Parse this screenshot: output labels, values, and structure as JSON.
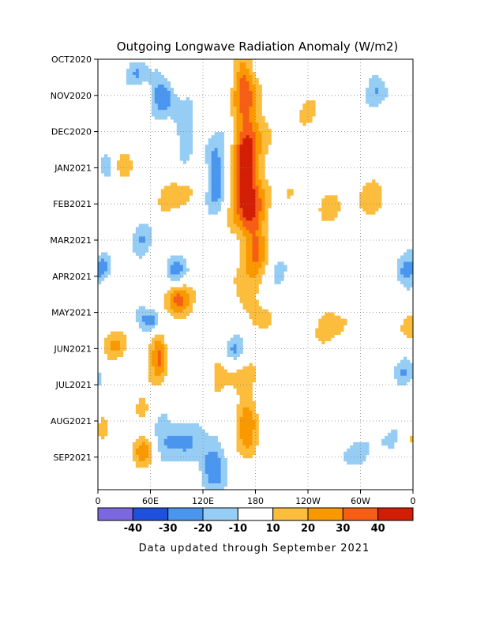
{
  "chart_data": {
    "type": "heatmap",
    "title": "Outgoing Longwave Radiation Anomaly (W/m2)",
    "x_ticks": [
      "0",
      "60E",
      "120E",
      "180",
      "120W",
      "60W",
      "0"
    ],
    "y_ticks": [
      "OCT2020",
      "NOV2020",
      "DEC2020",
      "JAN2021",
      "FEB2021",
      "MAR2021",
      "APR2021",
      "MAY2021",
      "JUN2021",
      "JUL2021",
      "AUG2021",
      "SEP2021"
    ],
    "grid": true,
    "colorbar": {
      "labels": [
        "-40",
        "-30",
        "-20",
        "-10",
        "10",
        "20",
        "30",
        "40"
      ],
      "colors": [
        "#7b68e0",
        "#1e50dc",
        "#4a96ee",
        "#96cdf5",
        "#ffffff",
        "#fcbd3c",
        "#fa9800",
        "#f55e14",
        "#d21e04"
      ]
    },
    "blobs": [
      {
        "lon": 165,
        "mon": 0.5,
        "sx": 9,
        "sy": 0.6,
        "v": 22
      },
      {
        "lon": 175,
        "mon": 1.6,
        "sx": 12,
        "sy": 0.8,
        "v": 24
      },
      {
        "lon": 170,
        "mon": 3.0,
        "sx": 10,
        "sy": 0.8,
        "v": 42
      },
      {
        "lon": 172,
        "mon": 4.1,
        "sx": 13,
        "sy": 0.6,
        "v": 28
      },
      {
        "lon": 178,
        "mon": 5.3,
        "sx": 11,
        "sy": 0.7,
        "v": 26
      },
      {
        "lon": 165,
        "mon": 6.5,
        "sx": 9,
        "sy": 0.4,
        "v": 18
      },
      {
        "lon": 75,
        "mon": 1.0,
        "sx": 10,
        "sy": 0.35,
        "v": -32
      },
      {
        "lon": 45,
        "mon": 0.35,
        "sx": 8,
        "sy": 0.3,
        "v": -22
      },
      {
        "lon": 100,
        "mon": 2.0,
        "sx": 14,
        "sy": 0.5,
        "v": -15
      },
      {
        "lon": 135,
        "mon": 3.2,
        "sx": 9,
        "sy": 0.7,
        "v": -25
      },
      {
        "lon": 25,
        "mon": 2.8,
        "sx": 8,
        "sy": 0.4,
        "v": 15
      },
      {
        "lon": 90,
        "mon": 3.8,
        "sx": 12,
        "sy": 0.35,
        "v": 18
      },
      {
        "lon": 90,
        "mon": 5.8,
        "sx": 10,
        "sy": 0.3,
        "v": -25
      },
      {
        "lon": 50,
        "mon": 4.9,
        "sx": 10,
        "sy": 0.4,
        "v": -15
      },
      {
        "lon": 90,
        "mon": 6.6,
        "sx": 11,
        "sy": 0.35,
        "v": 33
      },
      {
        "lon": 60,
        "mon": 7.25,
        "sx": 9,
        "sy": 0.25,
        "v": -35
      },
      {
        "lon": 70,
        "mon": 8.2,
        "sx": 7,
        "sy": 0.5,
        "v": 36
      },
      {
        "lon": 20,
        "mon": 7.9,
        "sx": 12,
        "sy": 0.3,
        "v": 16
      },
      {
        "lon": 155,
        "mon": 8.0,
        "sx": 10,
        "sy": 0.3,
        "v": -22
      },
      {
        "lon": 150,
        "mon": 8.6,
        "sx": 20,
        "sy": 0.4,
        "v": 16
      },
      {
        "lon": 270,
        "mon": 7.4,
        "sx": 14,
        "sy": 0.4,
        "v": 15
      },
      {
        "lon": 195,
        "mon": 7.3,
        "sx": 9,
        "sy": 0.3,
        "v": 15
      },
      {
        "lon": 320,
        "mon": 4.0,
        "sx": 18,
        "sy": 0.4,
        "v": 16
      },
      {
        "lon": 260,
        "mon": 4.0,
        "sx": 10,
        "sy": 0.35,
        "v": 15
      },
      {
        "lon": 218,
        "mon": 3.8,
        "sx": 7,
        "sy": 0.3,
        "v": 12
      },
      {
        "lon": 350,
        "mon": 5.9,
        "sx": 8,
        "sy": 0.35,
        "v": -25
      },
      {
        "lon": 355,
        "mon": 7.3,
        "sx": 8,
        "sy": 0.3,
        "v": 18
      },
      {
        "lon": 350,
        "mon": 8.7,
        "sx": 10,
        "sy": 0.3,
        "v": -15
      },
      {
        "lon": 318,
        "mon": 0.8,
        "sx": 8,
        "sy": 0.4,
        "v": -22
      },
      {
        "lon": 6,
        "mon": 5.8,
        "sx": 6,
        "sy": 0.35,
        "v": -18
      },
      {
        "lon": 8,
        "mon": 6.3,
        "sx": 5,
        "sy": 0.25,
        "v": 14
      },
      {
        "lon": 10,
        "mon": 3.0,
        "sx": 7,
        "sy": 0.3,
        "v": -18
      },
      {
        "lon": 85,
        "mon": 10.5,
        "sx": 20,
        "sy": 0.5,
        "v": -24
      },
      {
        "lon": 130,
        "mon": 11.2,
        "sx": 10,
        "sy": 0.5,
        "v": -32
      },
      {
        "lon": 55,
        "mon": 10.9,
        "sx": 10,
        "sy": 0.35,
        "v": 28
      },
      {
        "lon": 50,
        "mon": 9.7,
        "sx": 12,
        "sy": 0.25,
        "v": 15
      },
      {
        "lon": 170,
        "mon": 9.9,
        "sx": 10,
        "sy": 0.45,
        "v": 25
      },
      {
        "lon": 175,
        "mon": 10.8,
        "sx": 10,
        "sy": 0.35,
        "v": 14
      },
      {
        "lon": 290,
        "mon": 10.9,
        "sx": 12,
        "sy": 0.3,
        "v": -15
      },
      {
        "lon": 330,
        "mon": 10.6,
        "sx": 10,
        "sy": 0.3,
        "v": -12
      },
      {
        "lon": 5,
        "mon": 10.3,
        "sx": 6,
        "sy": 0.3,
        "v": 14
      },
      {
        "lon": 25,
        "mon": 9.4,
        "sx": 10,
        "sy": 0.3,
        "v": -12
      },
      {
        "lon": 240,
        "mon": 1.4,
        "sx": 14,
        "sy": 0.4,
        "v": 8
      },
      {
        "lon": 300,
        "mon": 2.3,
        "sx": 10,
        "sy": 0.4,
        "v": -8
      },
      {
        "lon": 210,
        "mon": 5.8,
        "sx": 10,
        "sy": 0.5,
        "v": -8
      }
    ]
  },
  "footer": "Data updated through September 2021"
}
